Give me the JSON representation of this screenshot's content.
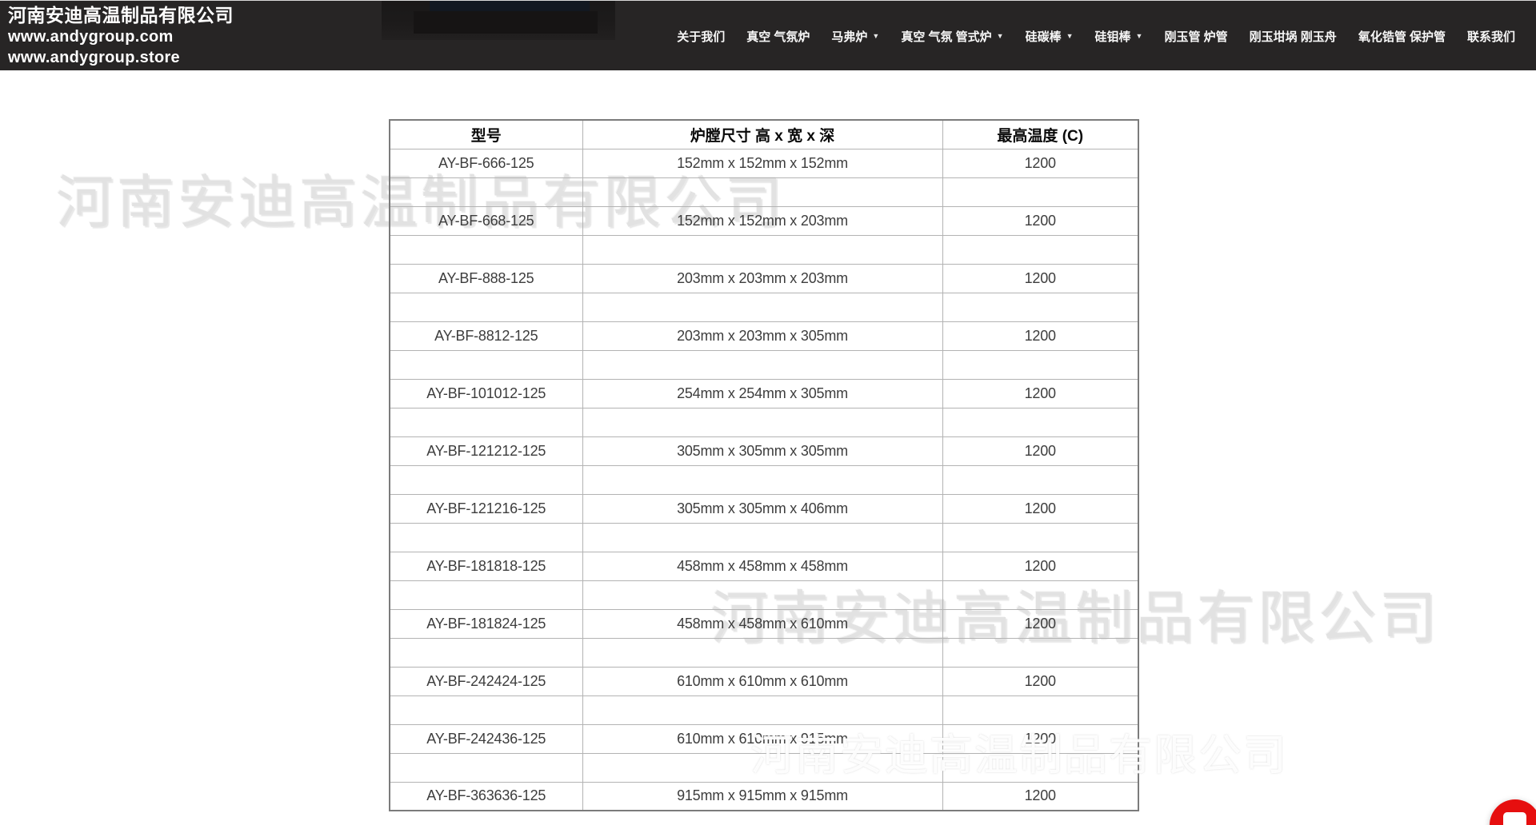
{
  "header": {
    "company_name": "河南安迪高温制品有限公司",
    "url_com": "www.andygroup.com",
    "url_store": "www.andygroup.store",
    "caret_icon": "▼",
    "nav_items": [
      {
        "label": "关于我们",
        "has_dropdown": false
      },
      {
        "label": "真空 气氛炉",
        "has_dropdown": false
      },
      {
        "label": "马弗炉",
        "has_dropdown": true
      },
      {
        "label": "真空 气氛 管式炉",
        "has_dropdown": true
      },
      {
        "label": "硅碳棒",
        "has_dropdown": true
      },
      {
        "label": "硅钼棒",
        "has_dropdown": true
      },
      {
        "label": "刚玉管 炉管",
        "has_dropdown": false
      },
      {
        "label": "刚玉坩埚 刚玉舟",
        "has_dropdown": false
      },
      {
        "label": "氧化锆管 保护管",
        "has_dropdown": false
      },
      {
        "label": "联系我们",
        "has_dropdown": false
      }
    ]
  },
  "watermark": {
    "text": "河南安迪高温制品有限公司"
  },
  "spec_table": {
    "columns": [
      "型号",
      "炉膛尺寸 高 x 宽 x 深",
      "最高温度 (C)"
    ],
    "rows": [
      {
        "model": "AY-BF-666-125",
        "chamber_size": "152mm x 152mm x 152mm",
        "max_temp": "1200"
      },
      {
        "model": "AY-BF-668-125",
        "chamber_size": "152mm x 152mm x 203mm",
        "max_temp": "1200"
      },
      {
        "model": "AY-BF-888-125",
        "chamber_size": "203mm x 203mm x 203mm",
        "max_temp": "1200"
      },
      {
        "model": "AY-BF-8812-125",
        "chamber_size": "203mm x 203mm x 305mm",
        "max_temp": "1200"
      },
      {
        "model": "AY-BF-101012-125",
        "chamber_size": "254mm x 254mm x 305mm",
        "max_temp": "1200"
      },
      {
        "model": "AY-BF-121212-125",
        "chamber_size": "305mm x 305mm x 305mm",
        "max_temp": "1200"
      },
      {
        "model": "AY-BF-121216-125",
        "chamber_size": "305mm x 305mm x 406mm",
        "max_temp": "1200"
      },
      {
        "model": "AY-BF-181818-125",
        "chamber_size": "458mm x 458mm x 458mm",
        "max_temp": "1200"
      },
      {
        "model": "AY-BF-181824-125",
        "chamber_size": "458mm x 458mm x 610mm",
        "max_temp": "1200"
      },
      {
        "model": "AY-BF-242424-125",
        "chamber_size": "610mm x 610mm x 610mm",
        "max_temp": "1200"
      },
      {
        "model": "AY-BF-242436-125",
        "chamber_size": "610mm x 610mm x 915mm",
        "max_temp": "1200"
      },
      {
        "model": "AY-BF-363636-125",
        "chamber_size": "915mm x 915mm x 915mm",
        "max_temp": "1200"
      }
    ]
  },
  "colors": {
    "header_bg": "#272525",
    "chat_button_red": "#e60f0f",
    "watermark_gray": "#e2e2e2"
  }
}
